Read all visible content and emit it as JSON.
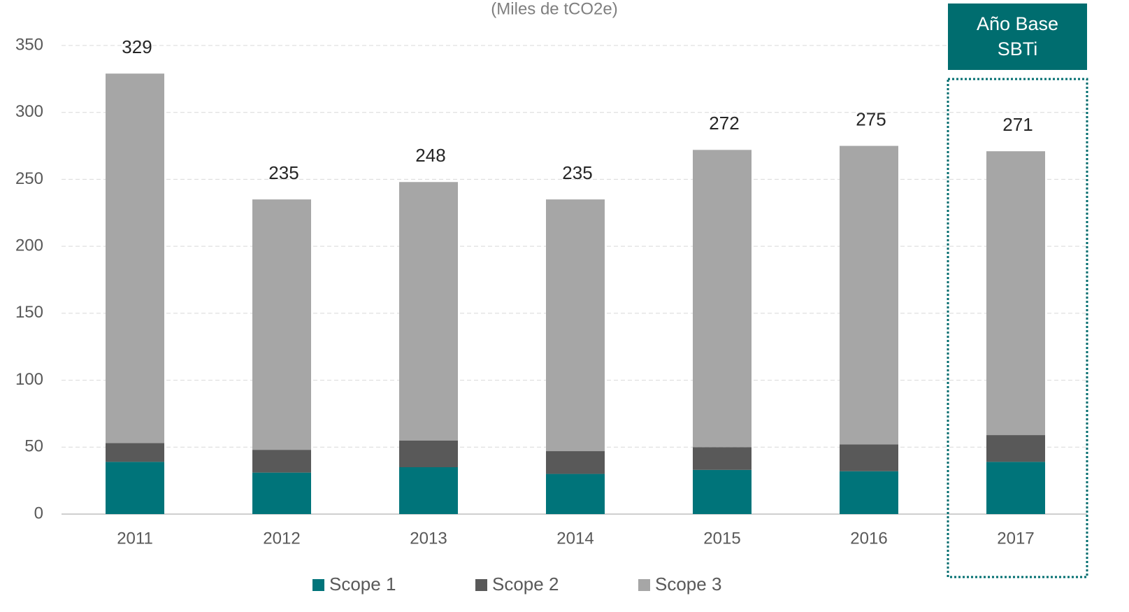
{
  "chart_data": {
    "type": "bar",
    "stacked": true,
    "subtitle": "(Miles de tCO2e)",
    "categories": [
      "2011",
      "2012",
      "2013",
      "2014",
      "2015",
      "2016",
      "2017"
    ],
    "series": [
      {
        "name": "Scope 1",
        "color": "#00747a",
        "values": [
          39,
          31,
          35,
          30,
          33,
          32,
          39
        ]
      },
      {
        "name": "Scope 2",
        "color": "#595959",
        "values": [
          14,
          17,
          20,
          17,
          17,
          20,
          20
        ]
      },
      {
        "name": "Scope 3",
        "color": "#a6a6a6",
        "values": [
          276,
          187,
          193,
          188,
          222,
          223,
          212
        ]
      }
    ],
    "totals": [
      329,
      235,
      248,
      235,
      272,
      275,
      271
    ],
    "annotation": "Año Base SBTi",
    "highlight_category": "2017",
    "highlight_color": "#006d6f",
    "ylim": [
      0,
      350
    ],
    "yticks": [
      0,
      50,
      100,
      150,
      200,
      250,
      300,
      350
    ],
    "grid": true
  }
}
